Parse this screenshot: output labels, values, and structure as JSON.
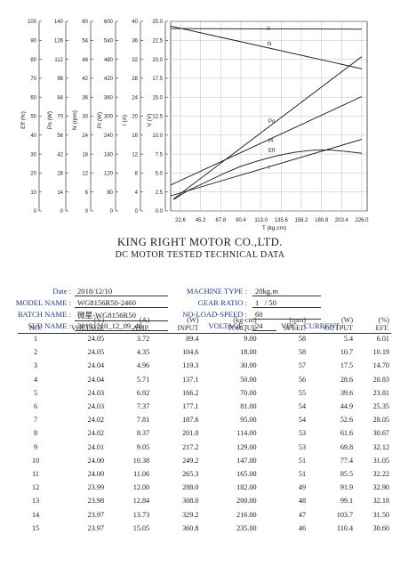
{
  "chart_data": {
    "type": "line",
    "xlabel": "T (kg.cm)",
    "xticks": [
      "22.6",
      "45.2",
      "67.8",
      "90.4",
      "113.0",
      "135.6",
      "158.2",
      "180.8",
      "203.4",
      "226.0"
    ],
    "xlim": [
      0,
      226
    ],
    "axes": [
      {
        "label": "Eff (%)",
        "ticks": [
          "100",
          "90",
          "80",
          "70",
          "60",
          "50",
          "40",
          "30",
          "20",
          "10",
          "0"
        ]
      },
      {
        "label": "Po (W)",
        "ticks": [
          "140",
          "126",
          "112",
          "98",
          "84",
          "70",
          "56",
          "42",
          "28",
          "14",
          "0"
        ]
      },
      {
        "label": "N (rpm)",
        "ticks": [
          "60",
          "54",
          "48",
          "42",
          "36",
          "30",
          "24",
          "18",
          "12",
          "6",
          "0"
        ]
      },
      {
        "label": "PI (W)",
        "ticks": [
          "600",
          "540",
          "480",
          "420",
          "360",
          "300",
          "240",
          "180",
          "120",
          "80",
          "0"
        ]
      },
      {
        "label": "I (A)",
        "ticks": [
          "40",
          "36",
          "32",
          "28",
          "24",
          "20",
          "16",
          "12",
          "8",
          "4",
          "0"
        ]
      },
      {
        "label": "V (V)",
        "ticks": [
          "25.0",
          "22.5",
          "20.0",
          "17.5",
          "15.0",
          "12.5",
          "10.0",
          "7.5",
          "5.0",
          "2.5",
          "0.0"
        ]
      }
    ],
    "grid": true,
    "series": [
      {
        "name": "V",
        "axis": "V",
        "x": [
          0,
          226
        ],
        "y": [
          24.05,
          23.97
        ]
      },
      {
        "name": "N",
        "axis": "N",
        "x": [
          0,
          226
        ],
        "y": [
          58.5,
          45
        ]
      },
      {
        "name": "Po",
        "axis": "Po",
        "x": [
          15,
          226
        ],
        "y": [
          9,
          114
        ]
      },
      {
        "name": "PI",
        "axis": "PI",
        "x": [
          0,
          226
        ],
        "y": [
          82,
          362
        ]
      },
      {
        "name": "Eff",
        "axis": "Eff",
        "x": [
          15,
          30,
          50,
          70,
          90,
          110,
          130,
          150,
          170,
          190,
          210,
          226
        ],
        "y": [
          6,
          10.5,
          15,
          19.5,
          23.5,
          26.5,
          29,
          30.9,
          32,
          32.2,
          31.3,
          30.4
        ]
      },
      {
        "name": "I",
        "axis": "I",
        "x": [
          0,
          226
        ],
        "y": [
          3.2,
          15.1
        ]
      }
    ]
  },
  "header": {
    "company": "KING RIGHT MOTOR CO.,LTD.",
    "subtitle": "DC MOTOR TESTED TECHNICAL DATA"
  },
  "info": {
    "date_label": "Date :",
    "date_value": "2018/12/10",
    "model_label": "MODEL NAME :",
    "model_value": "WG8156R50-2460",
    "batch_label": "BATCH NAME :",
    "batch_value": "微星-WG8156R50",
    "sub_label": "SUB NAME :",
    "sub_value": "20181210_12_09_48",
    "machine_label": "MACHINE TYPE :",
    "machine_value": "20kg.m",
    "gear_label": "GEAR RATIO :",
    "gear_a": "1",
    "gear_sep": "/",
    "gear_b": "50",
    "noload_label": "NO-LOAD-SPEED :",
    "noload_value": "60",
    "voltage_label": "VOLTAGE :",
    "voltage_value": "24",
    "vdc": "VDC",
    "current_label": "CURRENT :"
  },
  "table": {
    "units": [
      "",
      "(V)",
      "(A)",
      "(W)",
      "(kg-cm)",
      "(rpm)",
      "(W)",
      "(%)"
    ],
    "columns": [
      "NO.",
      "VOLTAGE",
      "AMP.",
      "INPUT",
      "TORQUE",
      "SPEED",
      "OUTPUT",
      "EFF."
    ],
    "rows": [
      [
        "1",
        "24.05",
        "3.72",
        "89.4",
        "9.00",
        "58",
        "5.4",
        "6.01"
      ],
      [
        "2",
        "24.05",
        "4.35",
        "104.6",
        "18.00",
        "58",
        "10.7",
        "10.19"
      ],
      [
        "3",
        "24.04",
        "4.96",
        "119.3",
        "30.00",
        "57",
        "17.5",
        "14.70"
      ],
      [
        "4",
        "24.04",
        "5.71",
        "137.1",
        "50.00",
        "56",
        "28.6",
        "20.83"
      ],
      [
        "5",
        "24.03",
        "6.92",
        "166.2",
        "70.00",
        "55",
        "39.6",
        "23.81"
      ],
      [
        "6",
        "24.03",
        "7.37",
        "177.1",
        "81.00",
        "54",
        "44.9",
        "25.35"
      ],
      [
        "7",
        "24.02",
        "7.81",
        "187.6",
        "95.00",
        "54",
        "52.6",
        "28.05"
      ],
      [
        "8",
        "24.02",
        "8.37",
        "201.0",
        "114.00",
        "53",
        "61.6",
        "30.67"
      ],
      [
        "9",
        "24.01",
        "9.05",
        "217.2",
        "129.00",
        "53",
        "69.8",
        "32.12"
      ],
      [
        "10",
        "24.00",
        "10.38",
        "249.2",
        "147.00",
        "51",
        "77.4",
        "31.05"
      ],
      [
        "11",
        "24.00",
        "11.06",
        "265.3",
        "165.00",
        "51",
        "85.5",
        "32.22"
      ],
      [
        "12",
        "23.99",
        "12.00",
        "288.0",
        "182.00",
        "49",
        "91.9",
        "32.90"
      ],
      [
        "13",
        "23.98",
        "12.84",
        "308.0",
        "200.00",
        "48",
        "99.1",
        "32.18"
      ],
      [
        "14",
        "23.97",
        "13.73",
        "329.2",
        "216.00",
        "47",
        "103.7",
        "31.50"
      ],
      [
        "15",
        "23.97",
        "15.05",
        "360.8",
        "235.00",
        "46",
        "110.4",
        "30.60"
      ]
    ]
  }
}
